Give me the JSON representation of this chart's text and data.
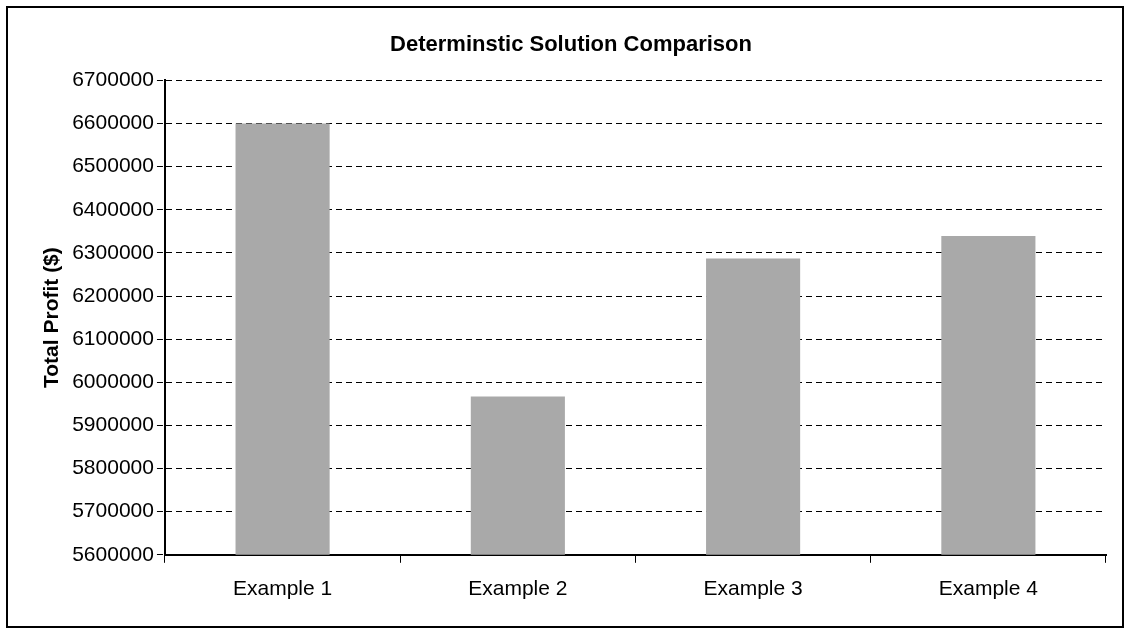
{
  "chart_data": {
    "type": "bar",
    "title": "Determinstic Solution Comparison",
    "ylabel": "Total Profit ($)",
    "categories": [
      "Example 1",
      "Example 2",
      "Example 3",
      "Example 4"
    ],
    "values": [
      6600000,
      5967000,
      6287000,
      6339000
    ],
    "color": "#a9a9a9",
    "ylim": [
      5600000,
      6700000
    ],
    "yticks": [
      5600000,
      5700000,
      5800000,
      5900000,
      6000000,
      6100000,
      6200000,
      6300000,
      6400000,
      6500000,
      6600000,
      6700000
    ],
    "grid": "y",
    "line_style": "dashed",
    "legend": false
  }
}
